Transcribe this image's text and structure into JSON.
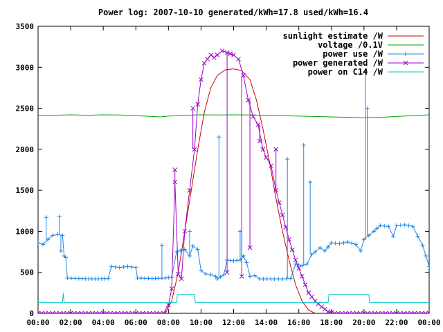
{
  "chart_data": {
    "type": "line",
    "title": "Power log: 2007-10-10 generated/kWh=17.8 used/kWh=16.4",
    "xlabel": "",
    "ylabel": "",
    "xlim": [
      0,
      24
    ],
    "ylim": [
      0,
      3500
    ],
    "x_ticks": [
      "00:00",
      "02:00",
      "04:00",
      "06:00",
      "08:00",
      "10:00",
      "12:00",
      "14:00",
      "16:00",
      "18:00",
      "20:00",
      "22:00",
      "00:00"
    ],
    "y_ticks": [
      0,
      500,
      1000,
      1500,
      2000,
      2500,
      3000,
      3500
    ],
    "grid": false,
    "legend_position": "top-right",
    "x_unit": "hours",
    "series": [
      {
        "name": "sunlight estimate /W",
        "color": "#cc0000",
        "style": "line",
        "points": [
          [
            7.8,
            0
          ],
          [
            8.2,
            150
          ],
          [
            8.6,
            500
          ],
          [
            9.0,
            1000
          ],
          [
            9.4,
            1500
          ],
          [
            9.8,
            2000
          ],
          [
            10.2,
            2450
          ],
          [
            10.6,
            2750
          ],
          [
            11.0,
            2900
          ],
          [
            11.5,
            2970
          ],
          [
            12.0,
            2980
          ],
          [
            12.5,
            2960
          ],
          [
            13.0,
            2850
          ],
          [
            13.4,
            2600
          ],
          [
            13.8,
            2250
          ],
          [
            14.2,
            1850
          ],
          [
            14.6,
            1400
          ],
          [
            15.0,
            1000
          ],
          [
            15.4,
            650
          ],
          [
            15.8,
            350
          ],
          [
            16.2,
            150
          ],
          [
            16.6,
            40
          ],
          [
            17.0,
            0
          ]
        ]
      },
      {
        "name": "voltage /0.1V",
        "color": "#00a000",
        "style": "line",
        "points": [
          [
            0,
            2410
          ],
          [
            1,
            2415
          ],
          [
            2,
            2420
          ],
          [
            3,
            2415
          ],
          [
            4,
            2420
          ],
          [
            5,
            2418
          ],
          [
            6,
            2410
          ],
          [
            7,
            2400
          ],
          [
            7.5,
            2395
          ],
          [
            8,
            2405
          ],
          [
            9,
            2415
          ],
          [
            10,
            2420
          ],
          [
            11,
            2418
          ],
          [
            12,
            2420
          ],
          [
            13,
            2418
          ],
          [
            14,
            2415
          ],
          [
            15,
            2410
          ],
          [
            16,
            2405
          ],
          [
            17,
            2400
          ],
          [
            18,
            2395
          ],
          [
            19,
            2390
          ],
          [
            20,
            2385
          ],
          [
            21,
            2390
          ],
          [
            22,
            2400
          ],
          [
            23,
            2410
          ],
          [
            24,
            2420
          ]
        ]
      },
      {
        "name": "power use /W",
        "color": "#1e88e5",
        "style": "linespoints-plus",
        "points": [
          [
            0,
            860
          ],
          [
            0.3,
            840
          ],
          [
            0.6,
            900
          ],
          [
            0.9,
            950
          ],
          [
            1.2,
            960
          ],
          [
            1.5,
            950
          ],
          [
            1.6,
            700
          ],
          [
            1.7,
            680
          ],
          [
            1.8,
            430
          ],
          [
            2.5,
            425
          ],
          [
            3.5,
            420
          ],
          [
            4.3,
            425
          ],
          [
            4.5,
            570
          ],
          [
            5.0,
            560
          ],
          [
            5.5,
            570
          ],
          [
            6.0,
            560
          ],
          [
            6.1,
            430
          ],
          [
            7.0,
            425
          ],
          [
            7.8,
            430
          ],
          [
            8.2,
            440
          ],
          [
            8.5,
            750
          ],
          [
            9.0,
            780
          ],
          [
            9.3,
            700
          ],
          [
            9.5,
            820
          ],
          [
            9.8,
            780
          ],
          [
            10.0,
            520
          ],
          [
            10.3,
            480
          ],
          [
            10.6,
            470
          ],
          [
            10.9,
            450
          ],
          [
            11.0,
            420
          ],
          [
            11.4,
            470
          ],
          [
            11.6,
            650
          ],
          [
            12.0,
            640
          ],
          [
            12.4,
            650
          ],
          [
            12.6,
            700
          ],
          [
            12.8,
            620
          ],
          [
            13.0,
            450
          ],
          [
            13.3,
            460
          ],
          [
            13.6,
            420
          ],
          [
            14.5,
            420
          ],
          [
            15.0,
            420
          ],
          [
            15.5,
            425
          ],
          [
            15.8,
            600
          ],
          [
            16.2,
            580
          ],
          [
            16.5,
            600
          ],
          [
            16.8,
            720
          ],
          [
            17.0,
            750
          ],
          [
            17.3,
            800
          ],
          [
            17.6,
            760
          ],
          [
            18.0,
            860
          ],
          [
            18.5,
            850
          ],
          [
            19.0,
            870
          ],
          [
            19.5,
            840
          ],
          [
            19.8,
            760
          ],
          [
            20.0,
            900
          ],
          [
            20.3,
            950
          ],
          [
            20.6,
            1000
          ],
          [
            21.0,
            1070
          ],
          [
            21.5,
            1060
          ],
          [
            21.8,
            940
          ],
          [
            22.0,
            1070
          ],
          [
            22.5,
            1080
          ],
          [
            23.0,
            1060
          ],
          [
            23.3,
            940
          ],
          [
            23.6,
            830
          ],
          [
            24,
            570
          ]
        ]
      },
      {
        "name": "power generated /W",
        "color": "#a000c8",
        "style": "linespoints-x",
        "points": [
          [
            0,
            0
          ],
          [
            2,
            0
          ],
          [
            4,
            0
          ],
          [
            6,
            0
          ],
          [
            7.7,
            0
          ],
          [
            8.0,
            100
          ],
          [
            8.2,
            300
          ],
          [
            8.4,
            1600
          ],
          [
            8.6,
            480
          ],
          [
            8.8,
            420
          ],
          [
            9.0,
            1000
          ],
          [
            9.3,
            1500
          ],
          [
            9.6,
            2000
          ],
          [
            9.8,
            2550
          ],
          [
            10.0,
            2850
          ],
          [
            10.2,
            3050
          ],
          [
            10.4,
            3100
          ],
          [
            10.6,
            3150
          ],
          [
            10.8,
            3120
          ],
          [
            11.0,
            3150
          ],
          [
            11.3,
            3200
          ],
          [
            11.6,
            3180
          ],
          [
            12.0,
            3150
          ],
          [
            12.3,
            3100
          ],
          [
            12.6,
            2900
          ],
          [
            12.9,
            2600
          ],
          [
            13.2,
            2400
          ],
          [
            13.5,
            2300
          ],
          [
            13.8,
            2000
          ],
          [
            14.0,
            1900
          ],
          [
            14.3,
            1800
          ],
          [
            14.6,
            1500
          ],
          [
            15.0,
            1200
          ],
          [
            15.4,
            900
          ],
          [
            15.8,
            650
          ],
          [
            16.2,
            450
          ],
          [
            16.6,
            250
          ],
          [
            17.0,
            150
          ],
          [
            17.4,
            80
          ],
          [
            17.8,
            20
          ],
          [
            18.2,
            0
          ],
          [
            20,
            0
          ],
          [
            22,
            0
          ],
          [
            24,
            0
          ]
        ]
      },
      {
        "name": "power on C14 /W",
        "color": "#00c8c8",
        "style": "line",
        "points": [
          [
            0,
            130
          ],
          [
            1.5,
            130
          ],
          [
            1.55,
            250
          ],
          [
            1.6,
            130
          ],
          [
            8.5,
            130
          ],
          [
            8.55,
            230
          ],
          [
            9.6,
            230
          ],
          [
            9.65,
            130
          ],
          [
            17.8,
            130
          ],
          [
            17.85,
            230
          ],
          [
            20.3,
            230
          ],
          [
            20.35,
            130
          ],
          [
            24,
            130
          ]
        ]
      }
    ],
    "spikes": [
      {
        "series": "power use /W",
        "x": 0.5,
        "y": 1170
      },
      {
        "series": "power use /W",
        "x": 1.3,
        "y": 1180
      },
      {
        "series": "power use /W",
        "x": 1.4,
        "y": 760
      },
      {
        "series": "power use /W",
        "x": 7.6,
        "y": 830
      },
      {
        "series": "power use /W",
        "x": 9.3,
        "y": 1000
      },
      {
        "series": "power use /W",
        "x": 11.1,
        "y": 2150
      },
      {
        "series": "power use /W",
        "x": 12.4,
        "y": 1000
      },
      {
        "series": "power use /W",
        "x": 15.3,
        "y": 1880
      },
      {
        "series": "power use /W",
        "x": 16.7,
        "y": 1600
      },
      {
        "series": "power use /W",
        "x": 16.3,
        "y": 2050
      },
      {
        "series": "power use /W",
        "x": 20.1,
        "y": 2950
      },
      {
        "series": "power use /W",
        "x": 20.2,
        "y": 2500
      },
      {
        "series": "power generated /W",
        "x": 8.4,
        "y": 1750
      },
      {
        "series": "power generated /W",
        "x": 9.5,
        "y": 2500
      },
      {
        "series": "power generated /W",
        "x": 11.6,
        "y": 500
      },
      {
        "series": "power generated /W",
        "x": 12.5,
        "y": 450
      },
      {
        "series": "power generated /W",
        "x": 13.0,
        "y": 800
      },
      {
        "series": "power generated /W",
        "x": 13.6,
        "y": 2100
      },
      {
        "series": "power generated /W",
        "x": 14.6,
        "y": 2000
      }
    ]
  }
}
